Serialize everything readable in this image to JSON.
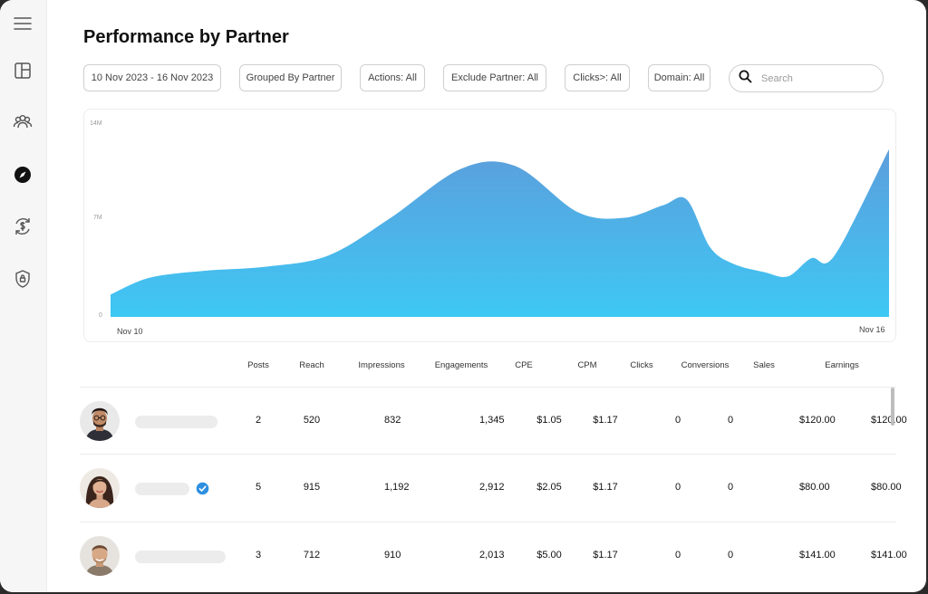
{
  "page": {
    "title": "Performance by Partner"
  },
  "sidebar": {
    "items": [
      {
        "icon": "menu-icon"
      },
      {
        "icon": "dashboard-icon"
      },
      {
        "icon": "users-icon"
      },
      {
        "icon": "compass-icon",
        "active": true
      },
      {
        "icon": "currency-refresh-icon"
      },
      {
        "icon": "shield-icon"
      }
    ]
  },
  "filters": {
    "date_range": "10 Nov 2023 - 16 Nov 2023",
    "grouped_by": "Grouped By Partner",
    "actions": "Actions: All",
    "exclude_partner": "Exclude Partner: All",
    "clicks": "Clicks>: All",
    "domain": "Domain: All"
  },
  "search": {
    "placeholder": "Search",
    "value": ""
  },
  "chart_data": {
    "type": "area",
    "title": "",
    "xlabel": "",
    "ylabel": "",
    "x_labels": [
      "Nov 10",
      "Nov 16"
    ],
    "y_ticks": [
      "14M",
      "7M",
      "0"
    ],
    "ylim": [
      0,
      14
    ],
    "xlim": [
      0,
      1
    ],
    "grid": false,
    "legend": "none",
    "fill_color_top": "#5c9edc",
    "fill_color_bottom": "#3ec8f4",
    "x": [
      0,
      0.05,
      0.12,
      0.2,
      0.28,
      0.36,
      0.45,
      0.52,
      0.6,
      0.66,
      0.71,
      0.74,
      0.77,
      0.8,
      0.84,
      0.87,
      0.9,
      0.93,
      1.0
    ],
    "y": [
      1.6,
      2.8,
      3.3,
      3.6,
      4.4,
      7.1,
      10.6,
      10.8,
      7.5,
      7.1,
      8.0,
      8.4,
      5.0,
      3.8,
      3.2,
      2.9,
      4.2,
      4.4,
      12.0
    ]
  },
  "table": {
    "columns": [
      "Posts",
      "Reach",
      "Impressions",
      "Engagements",
      "CPE",
      "CPM",
      "Clicks",
      "Conversions",
      "Sales",
      "Earnings"
    ],
    "rows": [
      {
        "verified": false,
        "values": [
          "2",
          "520",
          "832",
          "1,345",
          "$1.05",
          "$1.17",
          "0",
          "0",
          "$120.00",
          "$120.00"
        ]
      },
      {
        "verified": true,
        "values": [
          "5",
          "915",
          "1,192",
          "2,912",
          "$2.05",
          "$1.17",
          "0",
          "0",
          "$80.00",
          "$80.00"
        ]
      },
      {
        "verified": false,
        "values": [
          "3",
          "712",
          "910",
          "2,013",
          "$5.00",
          "$1.17",
          "0",
          "0",
          "$141.00",
          "$141.00"
        ]
      }
    ]
  }
}
